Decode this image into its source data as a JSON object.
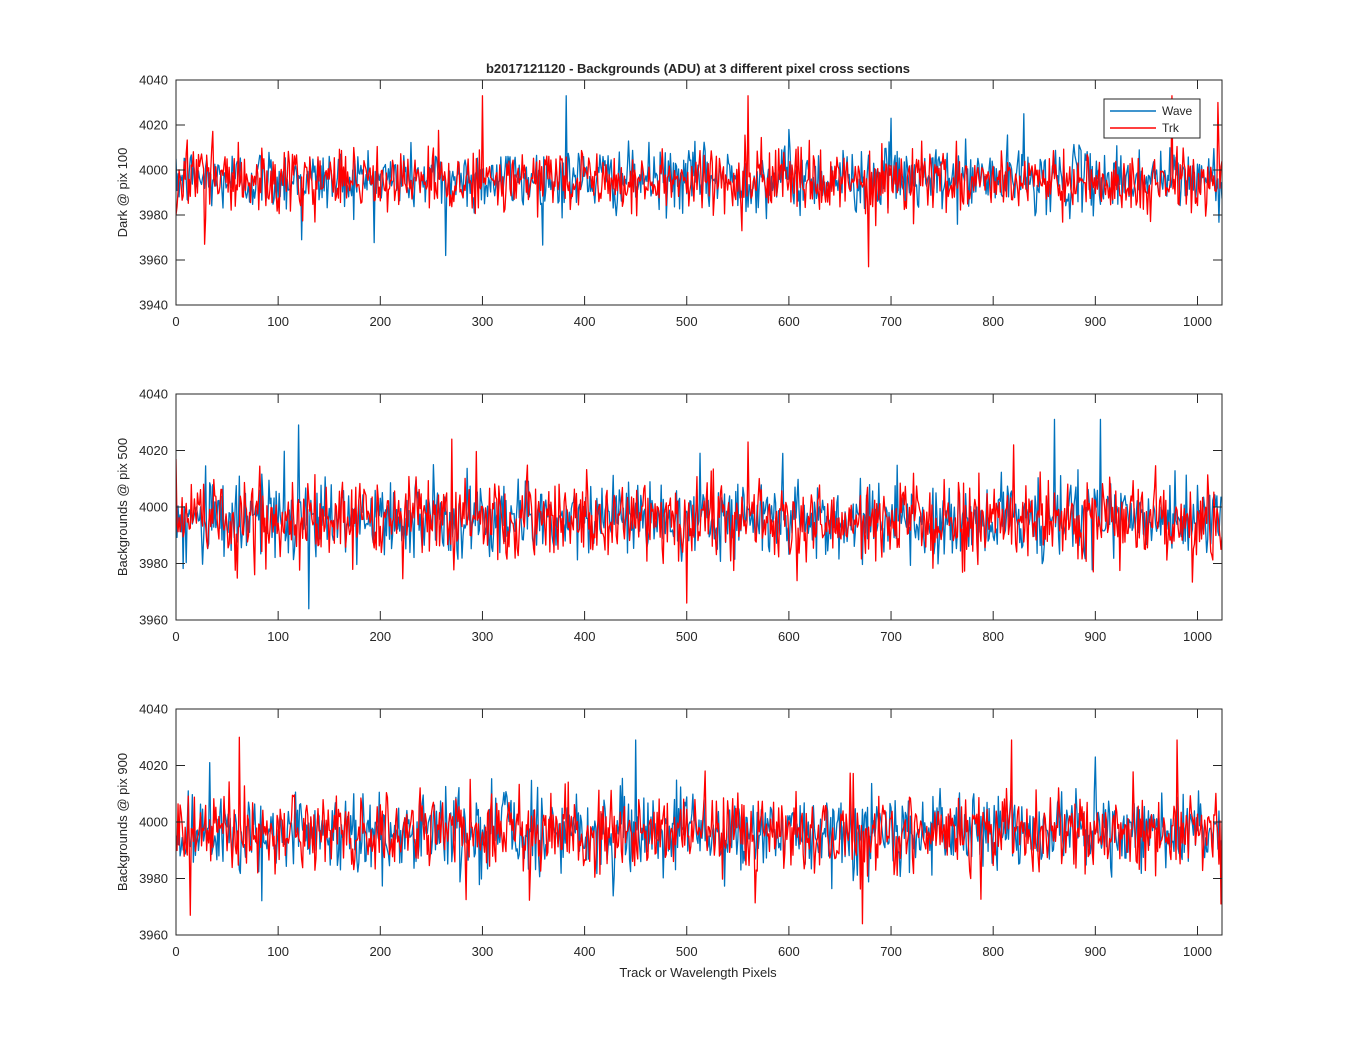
{
  "figure": {
    "title": "b2017121120 - Backgrounds (ADU) at 3 different pixel cross sections",
    "xlabel": "Track or Wavelength Pixels"
  },
  "colors": {
    "wave": "#0072BD",
    "trk": "#FF0000",
    "axes": "#262626"
  },
  "chart_data": [
    {
      "type": "line",
      "title": "b2017121120 - Backgrounds (ADU) at 3 different pixel cross sections",
      "xlabel": "",
      "ylabel": "Dark @ pix 100",
      "xlim": [
        0,
        1024
      ],
      "ylim": [
        3940,
        4040
      ],
      "xticks": [
        0,
        100,
        200,
        300,
        400,
        500,
        600,
        700,
        800,
        900,
        1000
      ],
      "yticks": [
        3940,
        3960,
        3980,
        4000,
        4020,
        4040
      ],
      "grid": false,
      "legend": "top-right",
      "series": [
        {
          "name": "Wave",
          "color": "#0072BD",
          "approx_mean": 3996,
          "approx_std": 7,
          "approx_min": 3962,
          "approx_max": 4033,
          "notable_points": [
            [
              0,
              4005
            ],
            [
              123,
              3969
            ],
            [
              264,
              3962
            ],
            [
              382,
              4033
            ],
            [
              600,
              4018
            ],
            [
              700,
              4023
            ],
            [
              830,
              4025
            ]
          ]
        },
        {
          "name": "Trk",
          "color": "#FF0000",
          "approx_mean": 3995,
          "approx_std": 7,
          "approx_min": 3957,
          "approx_max": 4033,
          "notable_points": [
            [
              0,
              3980
            ],
            [
              28,
              3967
            ],
            [
              300,
              4033
            ],
            [
              560,
              4033
            ],
            [
              678,
              3957
            ],
            [
              975,
              4033
            ],
            [
              1020,
              4030
            ]
          ]
        }
      ]
    },
    {
      "type": "line",
      "title": "",
      "xlabel": "",
      "ylabel": "Backgrounds @ pix 500",
      "xlim": [
        0,
        1024
      ],
      "ylim": [
        3960,
        4040
      ],
      "xticks": [
        0,
        100,
        200,
        300,
        400,
        500,
        600,
        700,
        800,
        900,
        1000
      ],
      "yticks": [
        3960,
        3980,
        4000,
        4020,
        4040
      ],
      "grid": false,
      "series": [
        {
          "name": "Wave",
          "color": "#0072BD",
          "approx_mean": 3996,
          "approx_std": 7,
          "approx_min": 3964,
          "approx_max": 4031,
          "notable_points": [
            [
              120,
              4029
            ],
            [
              130,
              3964
            ],
            [
              860,
              4031
            ],
            [
              905,
              4031
            ]
          ]
        },
        {
          "name": "Trk",
          "color": "#FF0000",
          "approx_mean": 3996,
          "approx_std": 7,
          "approx_min": 3966,
          "approx_max": 4026,
          "notable_points": [
            [
              0,
              4017
            ],
            [
              270,
              4024
            ],
            [
              500,
              3966
            ],
            [
              560,
              4023
            ],
            [
              820,
              4022
            ]
          ]
        }
      ]
    },
    {
      "type": "line",
      "title": "",
      "xlabel": "Track or Wavelength Pixels",
      "ylabel": "Backgrounds @ pix 900",
      "xlim": [
        0,
        1024
      ],
      "ylim": [
        3960,
        4040
      ],
      "xticks": [
        0,
        100,
        200,
        300,
        400,
        500,
        600,
        700,
        800,
        900,
        1000
      ],
      "yticks": [
        3960,
        3980,
        4000,
        4020,
        4040
      ],
      "grid": false,
      "series": [
        {
          "name": "Wave",
          "color": "#0072BD",
          "approx_mean": 3996,
          "approx_std": 7,
          "approx_min": 3968,
          "approx_max": 4029,
          "notable_points": [
            [
              33,
              4021
            ],
            [
              450,
              4029
            ],
            [
              900,
              4023
            ]
          ]
        },
        {
          "name": "Trk",
          "color": "#FF0000",
          "approx_mean": 3996,
          "approx_std": 7,
          "approx_min": 3964,
          "approx_max": 4030,
          "notable_points": [
            [
              14,
              3967
            ],
            [
              62,
              4030
            ],
            [
              672,
              3964
            ],
            [
              818,
              4029
            ],
            [
              980,
              4029
            ],
            [
              1023,
              3971
            ]
          ]
        }
      ]
    }
  ]
}
